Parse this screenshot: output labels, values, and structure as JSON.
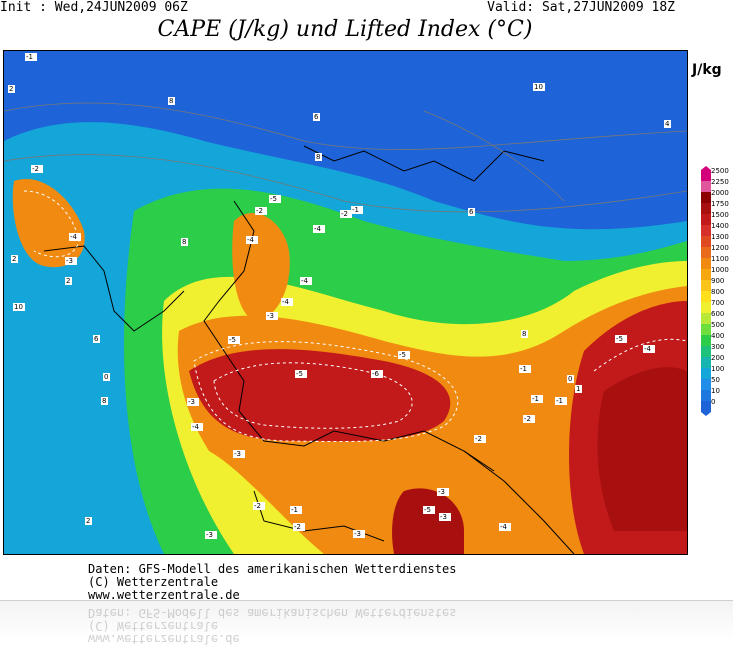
{
  "header": {
    "init": "Init : Wed,24JUN2009 06Z",
    "valid": "Valid: Sat,27JUN2009 18Z",
    "title": "CAPE (J/kg) und Lifted Index (°C)"
  },
  "legend": {
    "unit": "J/kg",
    "levels": [
      "2500",
      "2250",
      "2000",
      "1750",
      "1500",
      "1400",
      "1300",
      "1200",
      "1100",
      "1000",
      "900",
      "800",
      "700",
      "600",
      "500",
      "400",
      "300",
      "200",
      "100",
      "50",
      "10",
      "0"
    ],
    "colors": [
      "#d4007a",
      "#e0569d",
      "#8b0000",
      "#a81010",
      "#c21a1a",
      "#d6302a",
      "#e04a22",
      "#e86a1a",
      "#f08a10",
      "#f6a810",
      "#fac41a",
      "#ffe01a",
      "#f0f030",
      "#b8e838",
      "#6ede3c",
      "#2ccd48",
      "#1ec27a",
      "#18b4b0",
      "#14a6d8",
      "#1e8ee8",
      "#1e78e0",
      "#1e64d8"
    ]
  },
  "map": {
    "li_labels": [
      "-1",
      "2",
      "8",
      "-2",
      "-4",
      "-3",
      "10",
      "2",
      "8",
      "6",
      "8",
      "-2",
      "-4",
      "-5",
      "-3",
      "-4",
      "-5",
      "-4",
      "-5",
      "-3",
      "-4",
      "-3",
      "-2",
      "-1",
      "-2",
      "-3",
      "-1",
      "-2",
      "-4",
      "-5",
      "-6",
      "-3",
      "-2",
      "-5",
      "-3",
      "-3",
      "-4",
      "-5",
      "6",
      "10",
      "4",
      "8",
      "-1",
      "0",
      "6",
      "2",
      "8",
      "2",
      "-1",
      "1",
      "0",
      "-1",
      "-2",
      "-4"
    ]
  },
  "footer": {
    "line1": "Daten: GFS-Modell des amerikanischen Wetterdienstes",
    "line2": "(C) Wetterzentrale",
    "line3": "www.wetterzentrale.de"
  }
}
